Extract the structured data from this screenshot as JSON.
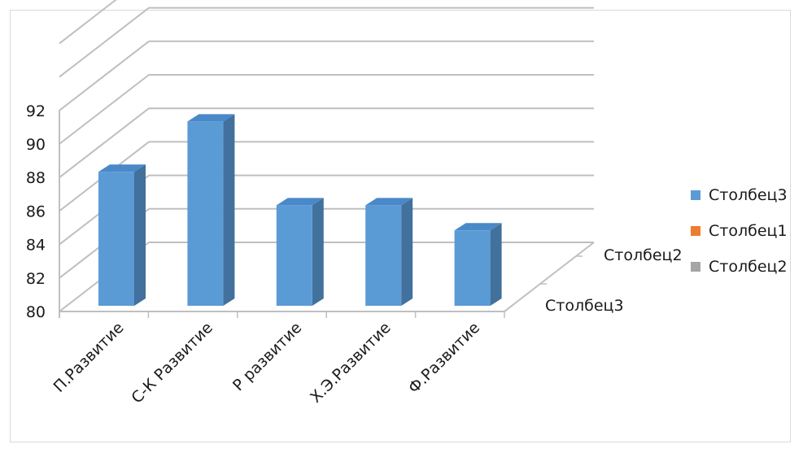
{
  "chart_data": {
    "type": "bar",
    "categories": [
      "П.Развитие",
      "С-К Развитие",
      "Р развитие",
      "Х.Э.Развитие",
      "Ф.Развитие"
    ],
    "series": [
      {
        "name": "Столбец3",
        "values": [
          88,
          91,
          86,
          86,
          84.5
        ],
        "color": "#5b9bd5"
      }
    ],
    "depth_labels": [
      "Столбец3",
      "Столбец2"
    ],
    "legend": [
      {
        "name": "Столбец3",
        "color": "#5b9bd5"
      },
      {
        "name": "Столбец1",
        "color": "#ed7d31"
      },
      {
        "name": "Столбец2",
        "color": "#a5a5a5"
      }
    ],
    "y_ticks": [
      "80",
      "82",
      "84",
      "86",
      "88",
      "90",
      "92"
    ],
    "ylim": [
      80,
      92
    ],
    "grid": true,
    "legend_position": "right"
  }
}
